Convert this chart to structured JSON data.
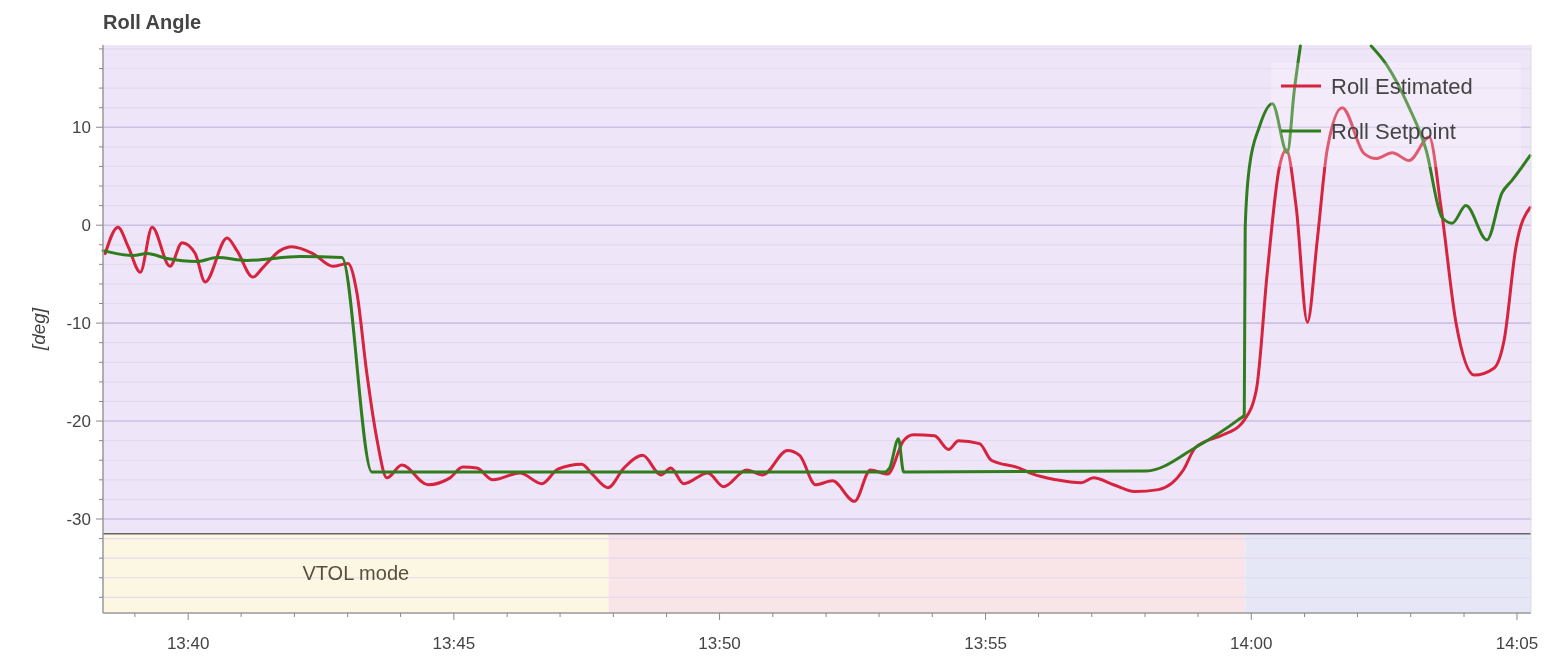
{
  "chart_data": {
    "type": "line",
    "title": "Roll Angle",
    "ylabel": "[deg]",
    "xlim": [
      13.64,
      14.0877
    ],
    "ylim": [
      -39.6,
      18.4
    ],
    "xticks": [
      {
        "value": 13.65,
        "label": null
      },
      {
        "value": 13.6667,
        "label": "13:40"
      },
      {
        "value": 13.6833,
        "label": null
      },
      {
        "value": 13.7,
        "label": null
      },
      {
        "value": 13.7167,
        "label": null
      },
      {
        "value": 13.7333,
        "label": null
      },
      {
        "value": 13.75,
        "label": "13:45"
      },
      {
        "value": 13.7667,
        "label": null
      },
      {
        "value": 13.7833,
        "label": null
      },
      {
        "value": 13.8,
        "label": null
      },
      {
        "value": 13.8167,
        "label": null
      },
      {
        "value": 13.8333,
        "label": "13:50"
      },
      {
        "value": 13.85,
        "label": null
      },
      {
        "value": 13.8667,
        "label": null
      },
      {
        "value": 13.8833,
        "label": null
      },
      {
        "value": 13.9,
        "label": null
      },
      {
        "value": 13.9167,
        "label": "13:55"
      },
      {
        "value": 13.9333,
        "label": null
      },
      {
        "value": 13.95,
        "label": null
      },
      {
        "value": 13.9667,
        "label": null
      },
      {
        "value": 13.9833,
        "label": null
      },
      {
        "value": 14.0,
        "label": "14:00"
      },
      {
        "value": 14.0167,
        "label": null
      },
      {
        "value": 14.0333,
        "label": null
      },
      {
        "value": 14.05,
        "label": null
      },
      {
        "value": 14.0667,
        "label": null
      },
      {
        "value": 14.0833,
        "label": "14:05"
      }
    ],
    "yticks": [
      {
        "value": 18,
        "label": null
      },
      {
        "value": 16,
        "label": null
      },
      {
        "value": 14,
        "label": null
      },
      {
        "value": 12,
        "label": null
      },
      10,
      {
        "value": 8,
        "label": null
      },
      {
        "value": 6,
        "label": null
      },
      {
        "value": 4,
        "label": null
      },
      {
        "value": 2,
        "label": null
      },
      0,
      {
        "value": -2,
        "label": null
      },
      {
        "value": -4,
        "label": null
      },
      {
        "value": -6,
        "label": null
      },
      {
        "value": -8,
        "label": null
      },
      -10,
      {
        "value": -12,
        "label": null
      },
      {
        "value": -14,
        "label": null
      },
      {
        "value": -16,
        "label": null
      },
      {
        "value": -18,
        "label": null
      },
      -20,
      {
        "value": -22,
        "label": null
      },
      {
        "value": -24,
        "label": null
      },
      {
        "value": -26,
        "label": null
      },
      {
        "value": -28,
        "label": null
      },
      -30,
      {
        "value": -32,
        "label": null
      },
      {
        "value": -34,
        "label": null
      },
      {
        "value": -36,
        "label": null
      },
      {
        "value": -38,
        "label": null
      }
    ],
    "grid": "y",
    "legend": "top right",
    "bands": [
      {
        "axis": "x",
        "from": 13.64,
        "to": 13.7985,
        "label": "VTOL mode",
        "color": "#fcf7e3"
      },
      {
        "axis": "x",
        "from": 13.7985,
        "to": 13.9981,
        "color": "#f9e4e7"
      },
      {
        "axis": "x",
        "from": 13.9981,
        "to": 14.0877,
        "color": "#e5e7f7"
      },
      {
        "axis": "y",
        "from": -31.5,
        "to": 18.4,
        "color": "#efe5f8"
      }
    ],
    "ref_lines": [
      {
        "axis": "y",
        "value": -31.5,
        "color": "#666666"
      }
    ],
    "series": [
      {
        "name": "Roll Estimated",
        "color": "#d6243f",
        "x": [
          13.6407,
          13.6447,
          13.6479,
          13.6517,
          13.6554,
          13.661,
          13.6648,
          13.6689,
          13.672,
          13.6789,
          13.682,
          13.687,
          13.6902,
          13.6955,
          13.6992,
          13.7058,
          13.7121,
          13.7168,
          13.7196,
          13.7227,
          13.7259,
          13.729,
          13.7337,
          13.7419,
          13.7488,
          13.7528,
          13.7572,
          13.7622,
          13.7707,
          13.7776,
          13.7826,
          13.7901,
          13.7936,
          13.7983,
          13.8033,
          13.8092,
          13.8149,
          13.818,
          13.8221,
          13.8296,
          13.8346,
          13.8418,
          13.8468,
          13.8546,
          13.8584,
          13.8634,
          13.8687,
          13.8756,
          13.8806,
          13.886,
          13.891,
          13.8941,
          13.9007,
          13.9051,
          13.9082,
          13.9148,
          13.9185,
          13.9273,
          13.9314,
          13.9389,
          13.9467,
          13.9505,
          13.9568,
          13.9634,
          13.9709,
          13.9787,
          13.9825,
          13.9912,
          13.9962,
          13.9978,
          14.0016,
          14.005,
          14.0088,
          14.011,
          14.0141,
          14.0176,
          14.0207,
          14.0238,
          14.0285,
          14.0354,
          14.0392,
          14.0442,
          14.0495,
          14.0558,
          14.0595,
          14.0642,
          14.0699,
          14.0761,
          14.0793,
          14.083,
          14.0874
        ],
        "values": [
          -2.9,
          -0.2,
          -2.2,
          -4.8,
          -0.2,
          -4.2,
          -1.8,
          -2.9,
          -5.8,
          -1.3,
          -2.6,
          -5.3,
          -4.3,
          -2.6,
          -2.2,
          -2.9,
          -4.2,
          -3.9,
          -6.9,
          -15.1,
          -21.9,
          -25.8,
          -24.5,
          -26.5,
          -25.8,
          -24.7,
          -24.8,
          -26.0,
          -25.3,
          -26.4,
          -24.9,
          -24.4,
          -25.5,
          -26.8,
          -24.8,
          -23.5,
          -25.5,
          -24.8,
          -26.4,
          -25.3,
          -26.7,
          -25.0,
          -25.5,
          -23.0,
          -23.5,
          -26.5,
          -26.1,
          -28.2,
          -25.0,
          -25.4,
          -22.0,
          -21.4,
          -21.5,
          -22.9,
          -22.0,
          -22.3,
          -24.0,
          -24.8,
          -25.4,
          -26.0,
          -26.3,
          -25.8,
          -26.5,
          -27.2,
          -27.0,
          -25.0,
          -22.7,
          -21.4,
          -20.5,
          -19.9,
          -16.8,
          -4.9,
          5.9,
          7.7,
          1.8,
          -9.9,
          -1.5,
          7.7,
          12.0,
          7.3,
          6.8,
          7.4,
          6.6,
          9.0,
          1.8,
          -10.0,
          -15.3,
          -14.6,
          -11.7,
          -2.2,
          1.8
        ]
      },
      {
        "name": "Roll Setpoint",
        "color": "#2f7d1d",
        "x": [
          13.64,
          13.6495,
          13.6538,
          13.6601,
          13.6695,
          13.6758,
          13.6852,
          13.7018,
          13.7149,
          13.7243,
          13.885,
          13.8866,
          13.8894,
          13.891,
          13.9671,
          13.9825,
          13.9962,
          13.9978,
          13.9981,
          13.9994,
          14.0025,
          14.0066,
          14.0113,
          14.0135,
          14.0154,
          14.0265,
          14.0376,
          14.0426,
          14.0495,
          14.0548,
          14.0598,
          14.063,
          14.0673,
          14.0739,
          14.0786,
          14.0818,
          14.0874
        ],
        "values": [
          -2.6,
          -3.1,
          -2.9,
          -3.4,
          -3.7,
          -3.3,
          -3.6,
          -3.2,
          -3.3,
          -25.2,
          -25.2,
          -24.8,
          -21.8,
          -25.2,
          -25.1,
          -22.7,
          -19.8,
          -19.4,
          -0.2,
          5.9,
          10.0,
          12.4,
          7.4,
          13.8,
          18.3,
          null,
          18.3,
          16.3,
          12.0,
          7.7,
          0.8,
          0.2,
          2.0,
          -1.5,
          3.3,
          4.6,
          7.1
        ]
      }
    ]
  }
}
